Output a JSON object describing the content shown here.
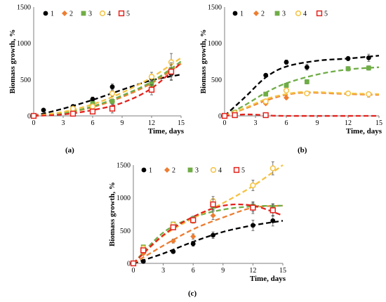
{
  "chart_data": [
    {
      "panel": "(a)",
      "type": "scatter",
      "xlabel": "Time, days",
      "ylabel": "Biomass growth, %",
      "xlim": [
        0,
        15
      ],
      "ylim": [
        0,
        1500
      ],
      "xticks": [
        "0",
        "3",
        "6",
        "9",
        "12",
        "15"
      ],
      "yticks": [
        "0",
        "500",
        "1000",
        "1500"
      ],
      "grid": false,
      "legend": "top-left",
      "series": [
        {
          "name": "1",
          "color": "#000000",
          "marker": "circle-filled",
          "x": [
            0,
            1,
            4,
            6,
            8,
            12,
            14
          ],
          "y": [
            0,
            80,
            130,
            230,
            400,
            520,
            580
          ],
          "err": [
            0,
            15,
            20,
            30,
            40,
            50,
            80
          ],
          "fit": [
            [
              0,
              0
            ],
            [
              3,
              100
            ],
            [
              6,
              220
            ],
            [
              9,
              360
            ],
            [
              12,
              490
            ],
            [
              15,
              570
            ]
          ]
        },
        {
          "name": "2",
          "color": "#ED7D31",
          "marker": "diamond",
          "x": [
            0,
            4,
            6,
            8,
            12,
            14
          ],
          "y": [
            0,
            80,
            150,
            200,
            420,
            620
          ],
          "err": [
            0,
            15,
            20,
            30,
            50,
            80
          ],
          "fit": [
            [
              0,
              0
            ],
            [
              3,
              35
            ],
            [
              6,
              120
            ],
            [
              9,
              260
            ],
            [
              12,
              450
            ],
            [
              15,
              720
            ]
          ]
        },
        {
          "name": "3",
          "color": "#70AD47",
          "marker": "square-filled",
          "x": [
            0,
            4,
            6,
            8,
            12,
            14
          ],
          "y": [
            0,
            90,
            170,
            200,
            440,
            640
          ],
          "err": [
            0,
            15,
            20,
            30,
            50,
            80
          ],
          "fit": [
            [
              0,
              0
            ],
            [
              3,
              40
            ],
            [
              6,
              130
            ],
            [
              9,
              280
            ],
            [
              12,
              470
            ],
            [
              15,
              750
            ]
          ]
        },
        {
          "name": "4",
          "color": "#F5C242",
          "marker": "circle-open",
          "x": [
            0,
            4,
            6,
            8,
            12,
            14
          ],
          "y": [
            0,
            100,
            130,
            310,
            540,
            740
          ],
          "err": [
            0,
            15,
            20,
            40,
            60,
            120
          ],
          "fit": [
            [
              0,
              0
            ],
            [
              3,
              55
            ],
            [
              6,
              160
            ],
            [
              9,
              320
            ],
            [
              12,
              530
            ],
            [
              15,
              800
            ]
          ]
        },
        {
          "name": "5",
          "color": "#E3231D",
          "marker": "square-open",
          "x": [
            0,
            4,
            6,
            8,
            12,
            14
          ],
          "y": [
            0,
            30,
            60,
            100,
            360,
            610
          ],
          "err": [
            0,
            15,
            20,
            60,
            70,
            120
          ],
          "fit": [
            [
              0,
              0
            ],
            [
              3,
              20
            ],
            [
              6,
              80
            ],
            [
              9,
              180
            ],
            [
              12,
              380
            ],
            [
              15,
              730
            ]
          ]
        }
      ]
    },
    {
      "panel": "(b)",
      "type": "scatter",
      "xlabel": "Time, days",
      "ylabel": "Biomass growth, %",
      "xlim": [
        0,
        15
      ],
      "ylim": [
        0,
        1500
      ],
      "xticks": [
        "0",
        "3",
        "6",
        "9",
        "12",
        "15"
      ],
      "yticks": [
        "0",
        "500",
        "1000",
        "1500"
      ],
      "grid": false,
      "legend": "top",
      "series": [
        {
          "name": "1",
          "color": "#000000",
          "marker": "circle-filled",
          "x": [
            0,
            4,
            6,
            8,
            12,
            14
          ],
          "y": [
            0,
            560,
            740,
            670,
            790,
            800
          ],
          "err": [
            0,
            20,
            30,
            40,
            30,
            50
          ],
          "fit": [
            [
              0,
              0
            ],
            [
              2,
              260
            ],
            [
              4,
              530
            ],
            [
              6,
              680
            ],
            [
              9,
              760
            ],
            [
              12,
              790
            ],
            [
              15,
              830
            ]
          ]
        },
        {
          "name": "2",
          "color": "#ED7D31",
          "marker": "diamond",
          "x": [
            0,
            1,
            4,
            6,
            8,
            12,
            14
          ],
          "y": [
            0,
            30,
            170,
            250,
            310,
            310,
            290
          ],
          "err": [
            0,
            10,
            15,
            20,
            20,
            30,
            30
          ],
          "fit": [
            [
              0,
              0
            ],
            [
              2,
              100
            ],
            [
              4,
              210
            ],
            [
              6,
              290
            ],
            [
              8,
              320
            ],
            [
              12,
              300
            ],
            [
              15,
              290
            ]
          ]
        },
        {
          "name": "3",
          "color": "#70AD47",
          "marker": "square-filled",
          "x": [
            0,
            1,
            4,
            6,
            8,
            12,
            14
          ],
          "y": [
            0,
            50,
            300,
            420,
            470,
            650,
            660
          ],
          "err": [
            0,
            10,
            20,
            30,
            30,
            30,
            30
          ],
          "fit": [
            [
              0,
              0
            ],
            [
              2,
              150
            ],
            [
              4,
              320
            ],
            [
              6,
              450
            ],
            [
              9,
              570
            ],
            [
              12,
              640
            ],
            [
              15,
              670
            ]
          ]
        },
        {
          "name": "4",
          "color": "#F5C242",
          "marker": "circle-open",
          "x": [
            0,
            1,
            4,
            6,
            8,
            12,
            14
          ],
          "y": [
            0,
            40,
            200,
            350,
            310,
            310,
            300
          ],
          "err": [
            0,
            10,
            15,
            20,
            20,
            30,
            30
          ],
          "fit": [
            [
              0,
              0
            ],
            [
              2,
              110
            ],
            [
              4,
              230
            ],
            [
              6,
              300
            ],
            [
              8,
              330
            ],
            [
              12,
              310
            ],
            [
              15,
              300
            ]
          ]
        },
        {
          "name": "5",
          "color": "#E3231D",
          "marker": "square-open",
          "x": [
            0,
            1,
            4
          ],
          "y": [
            0,
            10,
            10
          ],
          "err": [
            0,
            5,
            5
          ],
          "fit": [
            [
              0,
              0
            ],
            [
              2,
              20
            ],
            [
              4,
              10
            ],
            [
              6,
              0
            ],
            [
              15,
              0
            ]
          ]
        }
      ]
    },
    {
      "panel": "(c)",
      "type": "scatter",
      "xlabel": "Time, days",
      "ylabel": "Biomass growth, %",
      "xlim": [
        0,
        15
      ],
      "ylim": [
        0,
        1500
      ],
      "xticks": [
        "0",
        "3",
        "6",
        "9",
        "12",
        "15"
      ],
      "yticks": [
        "0",
        "500",
        "1000",
        "1500"
      ],
      "grid": false,
      "legend": "top",
      "series": [
        {
          "name": "1",
          "color": "#000000",
          "marker": "circle-filled",
          "x": [
            0,
            1,
            4,
            6,
            8,
            12,
            14
          ],
          "y": [
            0,
            30,
            180,
            300,
            430,
            580,
            650
          ],
          "err": [
            0,
            10,
            20,
            40,
            50,
            80,
            80
          ],
          "fit": [
            [
              0,
              0
            ],
            [
              3,
              150
            ],
            [
              6,
              330
            ],
            [
              9,
              480
            ],
            [
              12,
              580
            ],
            [
              15,
              650
            ]
          ]
        },
        {
          "name": "2",
          "color": "#ED7D31",
          "marker": "diamond",
          "x": [
            0,
            1,
            4,
            6,
            8,
            12,
            14
          ],
          "y": [
            0,
            150,
            340,
            410,
            730,
            850,
            800
          ],
          "err": [
            0,
            20,
            30,
            40,
            60,
            60,
            70
          ],
          "fit": [
            [
              0,
              0
            ],
            [
              3,
              270
            ],
            [
              6,
              520
            ],
            [
              9,
              700
            ],
            [
              12,
              850
            ],
            [
              15,
              880
            ]
          ]
        },
        {
          "name": "3",
          "color": "#70AD47",
          "marker": "square-filled",
          "x": [
            0,
            1,
            4,
            6,
            8,
            12,
            14
          ],
          "y": [
            0,
            250,
            600,
            680,
            870,
            870,
            850
          ],
          "err": [
            0,
            20,
            30,
            40,
            60,
            60,
            60
          ],
          "fit": [
            [
              0,
              0
            ],
            [
              3,
              470
            ],
            [
              6,
              700
            ],
            [
              9,
              820
            ],
            [
              12,
              870
            ],
            [
              15,
              880
            ]
          ]
        },
        {
          "name": "4",
          "color": "#F5C242",
          "marker": "circle-open",
          "x": [
            0,
            1,
            4,
            6,
            8,
            12,
            14
          ],
          "y": [
            0,
            230,
            590,
            650,
            950,
            1190,
            1450
          ],
          "err": [
            0,
            20,
            30,
            40,
            70,
            80,
            100
          ],
          "fit": [
            [
              0,
              0
            ],
            [
              3,
              420
            ],
            [
              6,
              690
            ],
            [
              9,
              920
            ],
            [
              12,
              1180
            ],
            [
              15,
              1500
            ]
          ]
        },
        {
          "name": "5",
          "color": "#E3231D",
          "marker": "square-open",
          "x": [
            0,
            1,
            4,
            6,
            8,
            12,
            14
          ],
          "y": [
            0,
            200,
            550,
            660,
            900,
            850,
            810
          ],
          "err": [
            0,
            20,
            30,
            40,
            80,
            90,
            90
          ],
          "fit": [
            [
              0,
              0
            ],
            [
              3,
              430
            ],
            [
              6,
              710
            ],
            [
              9,
              880
            ],
            [
              12,
              880
            ],
            [
              15,
              730
            ]
          ]
        }
      ]
    }
  ]
}
